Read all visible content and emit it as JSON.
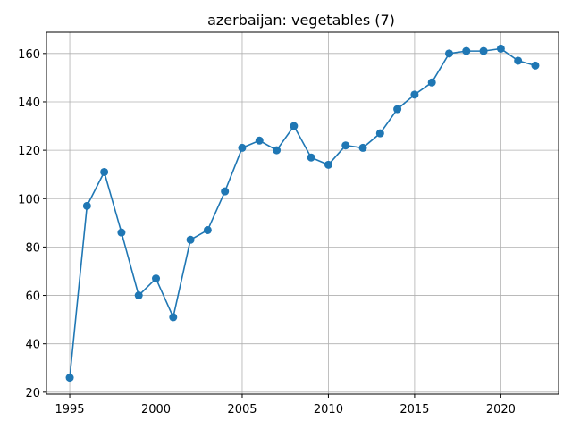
{
  "chart_data": {
    "type": "line",
    "title": "azerbaijan: vegetables (7)",
    "xlabel": "",
    "ylabel": "",
    "x": [
      1995,
      1996,
      1997,
      1998,
      1999,
      2000,
      2001,
      2002,
      2003,
      2004,
      2005,
      2006,
      2007,
      2008,
      2009,
      2010,
      2011,
      2012,
      2013,
      2014,
      2015,
      2016,
      2017,
      2018,
      2019,
      2020,
      2021,
      2022
    ],
    "series": [
      {
        "values": [
          26,
          97,
          111,
          86,
          60,
          67,
          51,
          83,
          87,
          103,
          121,
          124,
          120,
          130,
          117,
          114,
          122,
          121,
          127,
          137,
          143,
          148,
          160,
          161,
          161,
          162,
          157,
          155
        ],
        "color": "#1f77b4",
        "marker": "circle"
      }
    ],
    "xlim": [
      1993.65,
      2023.35
    ],
    "ylim": [
      19.2,
      168.8
    ],
    "xticks": [
      1995,
      2000,
      2005,
      2010,
      2015,
      2020
    ],
    "yticks": [
      20,
      40,
      60,
      80,
      100,
      120,
      140,
      160
    ],
    "grid": true,
    "legend": "none"
  }
}
